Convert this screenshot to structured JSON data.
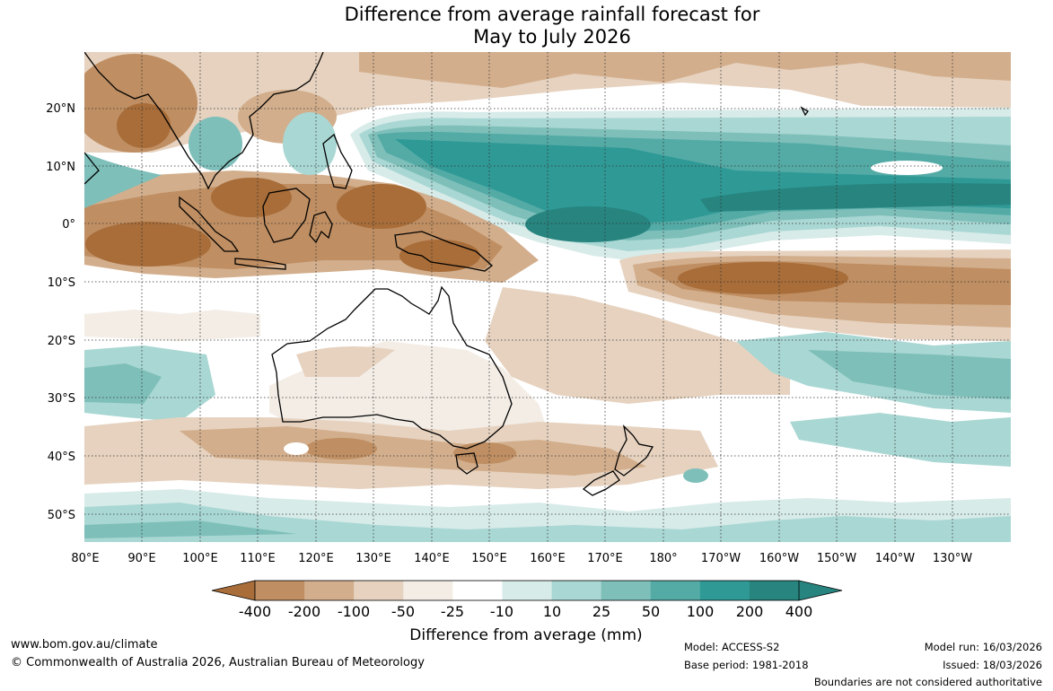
{
  "title": {
    "line1": "Difference from average rainfall forecast for",
    "line2": "May to July 2026"
  },
  "map": {
    "lat_labels": [
      "20°N",
      "10°N",
      "0°",
      "10°S",
      "20°S",
      "30°S",
      "40°S",
      "50°S"
    ],
    "lon_labels": [
      "80°E",
      "90°E",
      "100°E",
      "110°E",
      "120°E",
      "130°E",
      "140°E",
      "150°E",
      "160°E",
      "170°E",
      "180°",
      "170°W",
      "160°W",
      "150°W",
      "140°W",
      "130°W"
    ]
  },
  "legend": {
    "title": "Difference from average (mm)",
    "labels": [
      "-400",
      "-200",
      "-100",
      "-50",
      "-25",
      "-10",
      "10",
      "25",
      "50",
      "100",
      "200",
      "400"
    ],
    "colors": [
      "#a86d39",
      "#bf8e62",
      "#d2ae8c",
      "#e6d2bf",
      "#f3ede6",
      "#ffffff",
      "#d7ebe9",
      "#a9d7d3",
      "#7ebfba",
      "#54aba6",
      "#2f9995",
      "#27847f"
    ]
  },
  "footer": {
    "url": "www.bom.gov.au/climate",
    "copyright": "© Commonwealth of Australia 2026, Australian Bureau of Meteorology",
    "model": "Model: ACCESS-S2",
    "base_period": "Base period: 1981-2018",
    "model_run": "Model run: 16/03/2026",
    "issued": "Issued: 18/03/2026",
    "disclaimer": "Boundaries are not considered authoritative"
  }
}
